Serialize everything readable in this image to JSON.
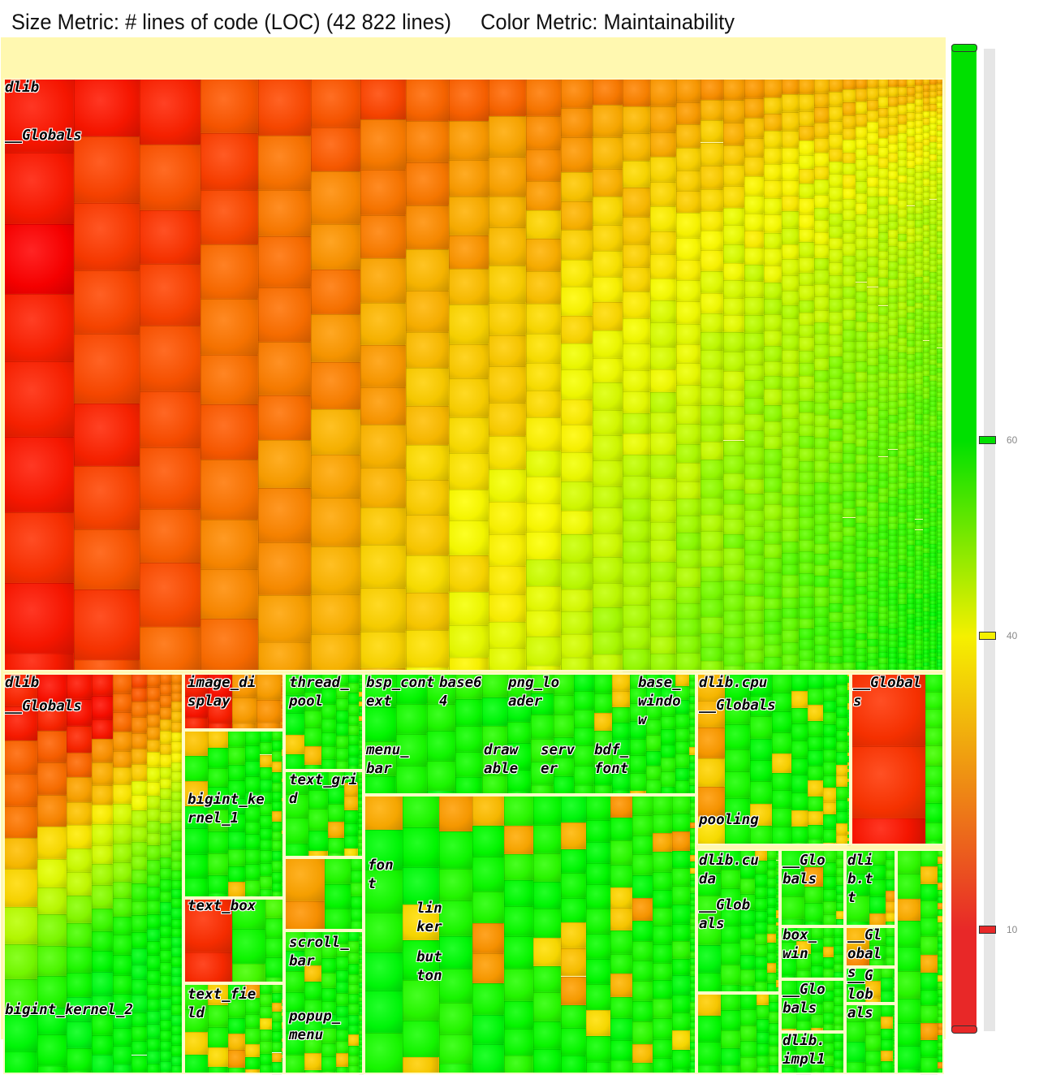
{
  "header": {
    "size_metric": "Size Metric: # lines of code (LOC) (42 822 lines)",
    "color_metric": "Color Metric: Maintainability"
  },
  "treemap": {
    "labels": [
      "dlib",
      "__Globals",
      "dlib",
      "__Globals",
      "bigint_kernel_2",
      "image_display",
      "bigint_kernel_1",
      "text_box",
      "text_field",
      "thread_pool",
      "text_grid",
      "scroll_bar",
      "popup_menu",
      "bsp_context",
      "base64",
      "png_loader",
      "base_window",
      "menu_bar",
      "drawable",
      "server",
      "bdf_font",
      "font",
      "linker",
      "button",
      "dlib.cpu",
      "__Globals",
      "pooling",
      "__Globals",
      "dlib.cuda",
      "__Globals",
      "__Globals",
      "dlib.tt",
      "box_win",
      "__Globals",
      "__Globals",
      "__Globals",
      "dlib.impl1"
    ]
  },
  "color_legend": {
    "lim": [
      0,
      100
    ],
    "ticks": [
      60,
      40,
      10
    ],
    "tick_colors": [
      "#00e000",
      "#f5f000",
      "#e82828"
    ]
  }
}
